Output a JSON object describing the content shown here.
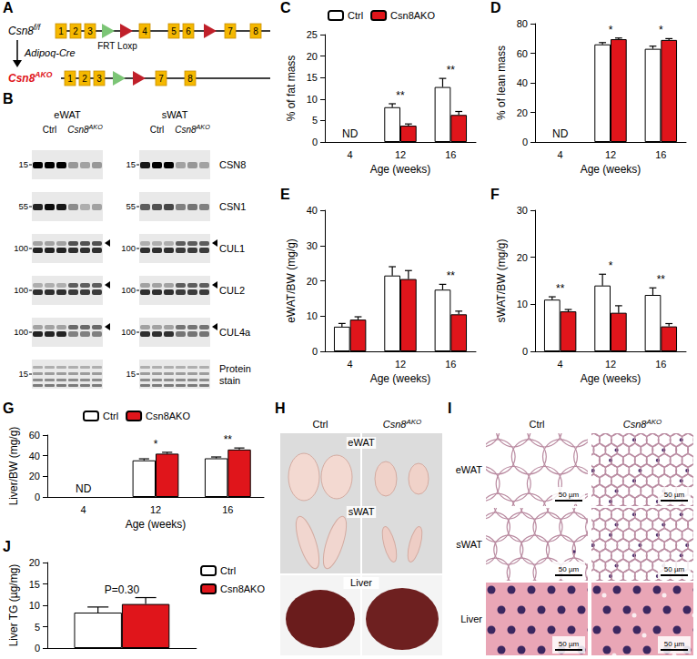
{
  "chart_data": [
    {
      "letter": "C",
      "type": "bar",
      "categories": [
        "4",
        "12",
        "16"
      ],
      "x_label": "Age (weeks)",
      "y_label": "% of fat mass",
      "ylim": [
        0,
        25
      ],
      "yticks": [
        0,
        5,
        10,
        15,
        20,
        25
      ],
      "grid": false,
      "legend": "top",
      "series": [
        {
          "name": "Ctrl",
          "color": "#ffffff",
          "values": [
            null,
            8.1,
            12.8
          ],
          "errors": [
            null,
            0.8,
            2.0
          ]
        },
        {
          "name": "Csn8AKO",
          "color": "#e0151b",
          "values": [
            null,
            3.8,
            6.3
          ],
          "errors": [
            null,
            0.4,
            0.8
          ]
        }
      ],
      "annotations": [
        "ND",
        "**",
        "**"
      ]
    },
    {
      "letter": "D",
      "type": "bar",
      "categories": [
        "4",
        "12",
        "16"
      ],
      "x_label": "Age (weeks)",
      "y_label": "% of lean mass",
      "ylim": [
        0,
        80
      ],
      "yticks": [
        0,
        20,
        40,
        60,
        80
      ],
      "grid": false,
      "series": [
        {
          "name": "Ctrl",
          "color": "#ffffff",
          "values": [
            null,
            66,
            63
          ],
          "errors": [
            null,
            1.2,
            1.8
          ]
        },
        {
          "name": "Csn8AKO",
          "color": "#e0151b",
          "values": [
            null,
            69.5,
            69
          ],
          "errors": [
            null,
            0.8,
            0.9
          ]
        }
      ],
      "annotations": [
        "ND",
        "*",
        "*"
      ]
    },
    {
      "letter": "E",
      "type": "bar",
      "categories": [
        "4",
        "12",
        "16"
      ],
      "x_label": "Age (weeks)",
      "y_label": "eWAT/BW (mg/g)",
      "ylim": [
        0,
        40
      ],
      "yticks": [
        0,
        10,
        20,
        30,
        40
      ],
      "grid": false,
      "series": [
        {
          "name": "Ctrl",
          "color": "#ffffff",
          "values": [
            7,
            21.5,
            17.5
          ],
          "errors": [
            0.9,
            2.5,
            1.5
          ]
        },
        {
          "name": "Csn8AKO",
          "color": "#e0151b",
          "values": [
            9,
            20.5,
            10.5
          ],
          "errors": [
            0.8,
            2.4,
            0.9
          ]
        }
      ],
      "annotations": [
        null,
        null,
        "**"
      ]
    },
    {
      "letter": "F",
      "type": "bar",
      "categories": [
        "4",
        "12",
        "16"
      ],
      "x_label": "Age (weeks)",
      "y_label": "sWAT/BW (mg/g)",
      "ylim": [
        0,
        30
      ],
      "yticks": [
        0,
        10,
        20,
        30
      ],
      "grid": false,
      "series": [
        {
          "name": "Ctrl",
          "color": "#ffffff",
          "values": [
            11,
            14,
            12
          ],
          "errors": [
            0.6,
            2.4,
            1.5
          ]
        },
        {
          "name": "Csn8AKO",
          "color": "#e0151b",
          "values": [
            8.5,
            8.2,
            5.3
          ],
          "errors": [
            0.4,
            1.5,
            0.6
          ]
        }
      ],
      "annotations": [
        "**",
        "*",
        "**"
      ]
    },
    {
      "letter": "G",
      "type": "bar",
      "categories": [
        "4",
        "12",
        "16"
      ],
      "x_label": "Age (weeks)",
      "y_label": "Liver/BW (mg/g)",
      "ylim": [
        0,
        60
      ],
      "yticks": [
        0,
        20,
        40,
        60
      ],
      "grid": false,
      "legend": "top",
      "series": [
        {
          "name": "Ctrl",
          "color": "#ffffff",
          "values": [
            null,
            35.5,
            37.5
          ],
          "errors": [
            null,
            1.5,
            1.3
          ]
        },
        {
          "name": "Csn8AKO",
          "color": "#e0151b",
          "values": [
            null,
            42,
            46
          ],
          "errors": [
            null,
            1.3,
            1.5
          ]
        }
      ],
      "annotations": [
        "ND",
        "*",
        "**"
      ]
    },
    {
      "letter": "J",
      "type": "bar",
      "categories": [
        null
      ],
      "y_label": "Liver TG (µg/mg)",
      "ylim": [
        0,
        20
      ],
      "yticks": [
        0,
        5,
        10,
        15,
        20
      ],
      "grid": false,
      "legend": "top-right",
      "tick_labels": "y",
      "series": [
        {
          "name": "Ctrl",
          "color": "#ffffff",
          "values": [
            8.3
          ],
          "errors": [
            1.3
          ]
        },
        {
          "name": "Csn8AKO",
          "color": "#e0151b",
          "values": [
            10.3
          ],
          "errors": [
            1.5
          ]
        }
      ],
      "annotations": [
        "P=0.30"
      ]
    }
  ],
  "panels": {
    "gene_diagram": {
      "letter": "A",
      "floxed_label": {
        "text": "Csn8",
        "sup": "f/f"
      },
      "floxed_exons": [
        "1",
        "2",
        "3",
        "4",
        "5",
        "6",
        "7",
        "8"
      ],
      "site_label": "FRT Loxp",
      "cre_label": "Adipoq-Cre",
      "ko_label": {
        "text": "Csn8",
        "sup": "AKO"
      },
      "ko_exons": [
        "1",
        "2",
        "3",
        "7",
        "8"
      ]
    },
    "western_blot": {
      "letter": "B",
      "tissues": [
        "eWAT",
        "sWAT"
      ],
      "groups": [
        "Ctrl",
        {
          "text": "Csn8",
          "sup": "AKO"
        }
      ],
      "rows": [
        {
          "label": "CSN8",
          "marker": 15,
          "bands": [
            [
              1,
              1,
              1,
              0.35,
              0.3,
              0.35
            ],
            [
              0.9,
              1,
              1,
              0.3,
              0.35,
              0.3
            ]
          ]
        },
        {
          "label": "CSN1",
          "marker": 55,
          "bands": [
            [
              0.85,
              0.95,
              0.9,
              0.4,
              0.25,
              0.3
            ],
            [
              0.6,
              0.65,
              0.7,
              0.45,
              0.5,
              0.45
            ]
          ]
        },
        {
          "label": "CUL1",
          "marker": 100,
          "bands": [
            [
              0.85,
              0.85,
              0.85,
              0.8,
              0.8,
              0.8
            ],
            [
              0.8,
              0.8,
              0.8,
              0.75,
              0.75,
              0.75
            ]
          ],
          "upper_bands": [
            [
              0.3,
              0.3,
              0.3,
              0.65,
              0.65,
              0.65
            ],
            [
              0.25,
              0.25,
              0.25,
              0.6,
              0.6,
              0.6
            ]
          ]
        },
        {
          "label": "CUL2",
          "marker": 100,
          "bands": [
            [
              0.8,
              0.8,
              0.8,
              0.75,
              0.75,
              0.75
            ],
            [
              0.8,
              0.8,
              0.8,
              0.75,
              0.75,
              0.75
            ]
          ],
          "upper_bands": [
            [
              0.25,
              0.25,
              0.25,
              0.6,
              0.6,
              0.6
            ],
            [
              0.3,
              0.3,
              0.3,
              0.6,
              0.6,
              0.6
            ]
          ]
        },
        {
          "label": "CUL4a",
          "marker": 100,
          "bands": [
            [
              0.85,
              0.85,
              0.85,
              0.45,
              0.45,
              0.45
            ],
            [
              0.8,
              0.8,
              0.8,
              0.5,
              0.5,
              0.5
            ]
          ],
          "upper_bands": [
            [
              0.3,
              0.3,
              0.3,
              0.55,
              0.55,
              0.55
            ],
            [
              0.3,
              0.3,
              0.3,
              0.5,
              0.5,
              0.5
            ]
          ]
        },
        {
          "label": "Protein stain",
          "marker": 15,
          "bands": [
            [
              0.5,
              0.5,
              0.5,
              0.5,
              0.5,
              0.5
            ],
            [
              0.5,
              0.5,
              0.5,
              0.5,
              0.5,
              0.5
            ]
          ]
        }
      ]
    },
    "tissue_photos": {
      "letter": "H",
      "columns": [
        "Ctrl",
        {
          "text": "Csn8",
          "sup": "AKO"
        }
      ],
      "rows": [
        "eWAT",
        "sWAT",
        "Liver"
      ]
    },
    "histology": {
      "letter": "I",
      "columns": [
        "Ctrl",
        {
          "text": "Csn8",
          "sup": "AKO"
        }
      ],
      "rows": [
        "eWAT",
        "sWAT",
        "Liver"
      ],
      "scale_bar": "50 µm"
    }
  }
}
